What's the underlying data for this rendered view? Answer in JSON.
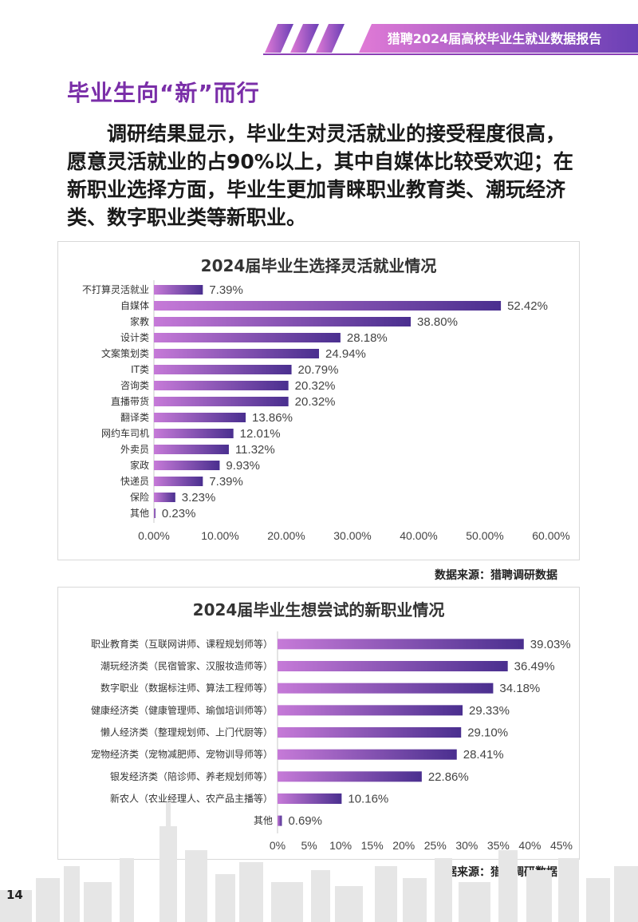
{
  "header": {
    "title": "猎聘2024届高校毕业生就业数据报告"
  },
  "section_title": "毕业生向“新”而行",
  "intro": "调研结果显示，毕业生对灵活就业的接受程度很高，愿意灵活就业的占90%以上，其中自媒体比较受欢迎；在新职业选择方面，毕业生更加青睐职业教育类、潮玩经济类、数字职业类等新职业。",
  "page_number": "14",
  "colors": {
    "accent": "#7a2ea8",
    "bar_start": "#c67ad8",
    "bar_end": "#4a2f8f"
  },
  "chart_data": [
    {
      "type": "bar",
      "orientation": "horizontal",
      "title": "2024届毕业生选择灵活就业情况",
      "categories": [
        "不打算灵活就业",
        "自媒体",
        "家教",
        "设计类",
        "文案策划类",
        "IT类",
        "咨询类",
        "直播带货",
        "翻译类",
        "网约车司机",
        "外卖员",
        "家政",
        "快递员",
        "保险",
        "其他"
      ],
      "values": [
        7.39,
        52.42,
        38.8,
        28.18,
        24.94,
        20.79,
        20.32,
        20.32,
        13.86,
        12.01,
        11.32,
        9.93,
        7.39,
        3.23,
        0.23
      ],
      "value_labels": [
        "7.39%",
        "52.42%",
        "38.80%",
        "28.18%",
        "24.94%",
        "20.79%",
        "20.32%",
        "20.32%",
        "13.86%",
        "12.01%",
        "11.32%",
        "9.93%",
        "7.39%",
        "3.23%",
        "0.23%"
      ],
      "xlim": [
        0,
        60
      ],
      "ticks": [
        "0.00%",
        "10.00%",
        "20.00%",
        "30.00%",
        "40.00%",
        "50.00%",
        "60.00%"
      ],
      "source": "数据来源：猎聘调研数据"
    },
    {
      "type": "bar",
      "orientation": "horizontal",
      "title": "2024届毕业生想尝试的新职业情况",
      "categories": [
        "职业教育类（互联网讲师、课程规划师等）",
        "潮玩经济类（民宿管家、汉服妆造师等）",
        "数字职业（数据标注师、算法工程师等）",
        "健康经济类（健康管理师、瑜伽培训师等）",
        "懒人经济类（整理规划师、上门代厨等）",
        "宠物经济类（宠物减肥师、宠物训导师等）",
        "银发经济类（陪诊师、养老规划师等）",
        "新农人（农业经理人、农产品主播等）",
        "其他"
      ],
      "values": [
        39.03,
        36.49,
        34.18,
        29.33,
        29.1,
        28.41,
        22.86,
        10.16,
        0.69
      ],
      "value_labels": [
        "39.03%",
        "36.49%",
        "34.18%",
        "29.33%",
        "29.10%",
        "28.41%",
        "22.86%",
        "10.16%",
        "0.69%"
      ],
      "xlim": [
        0,
        45
      ],
      "ticks": [
        "0%",
        "5%",
        "10%",
        "15%",
        "20%",
        "25%",
        "30%",
        "35%",
        "40%",
        "45%"
      ],
      "source": "数据来源：猎聘调研数据"
    }
  ]
}
